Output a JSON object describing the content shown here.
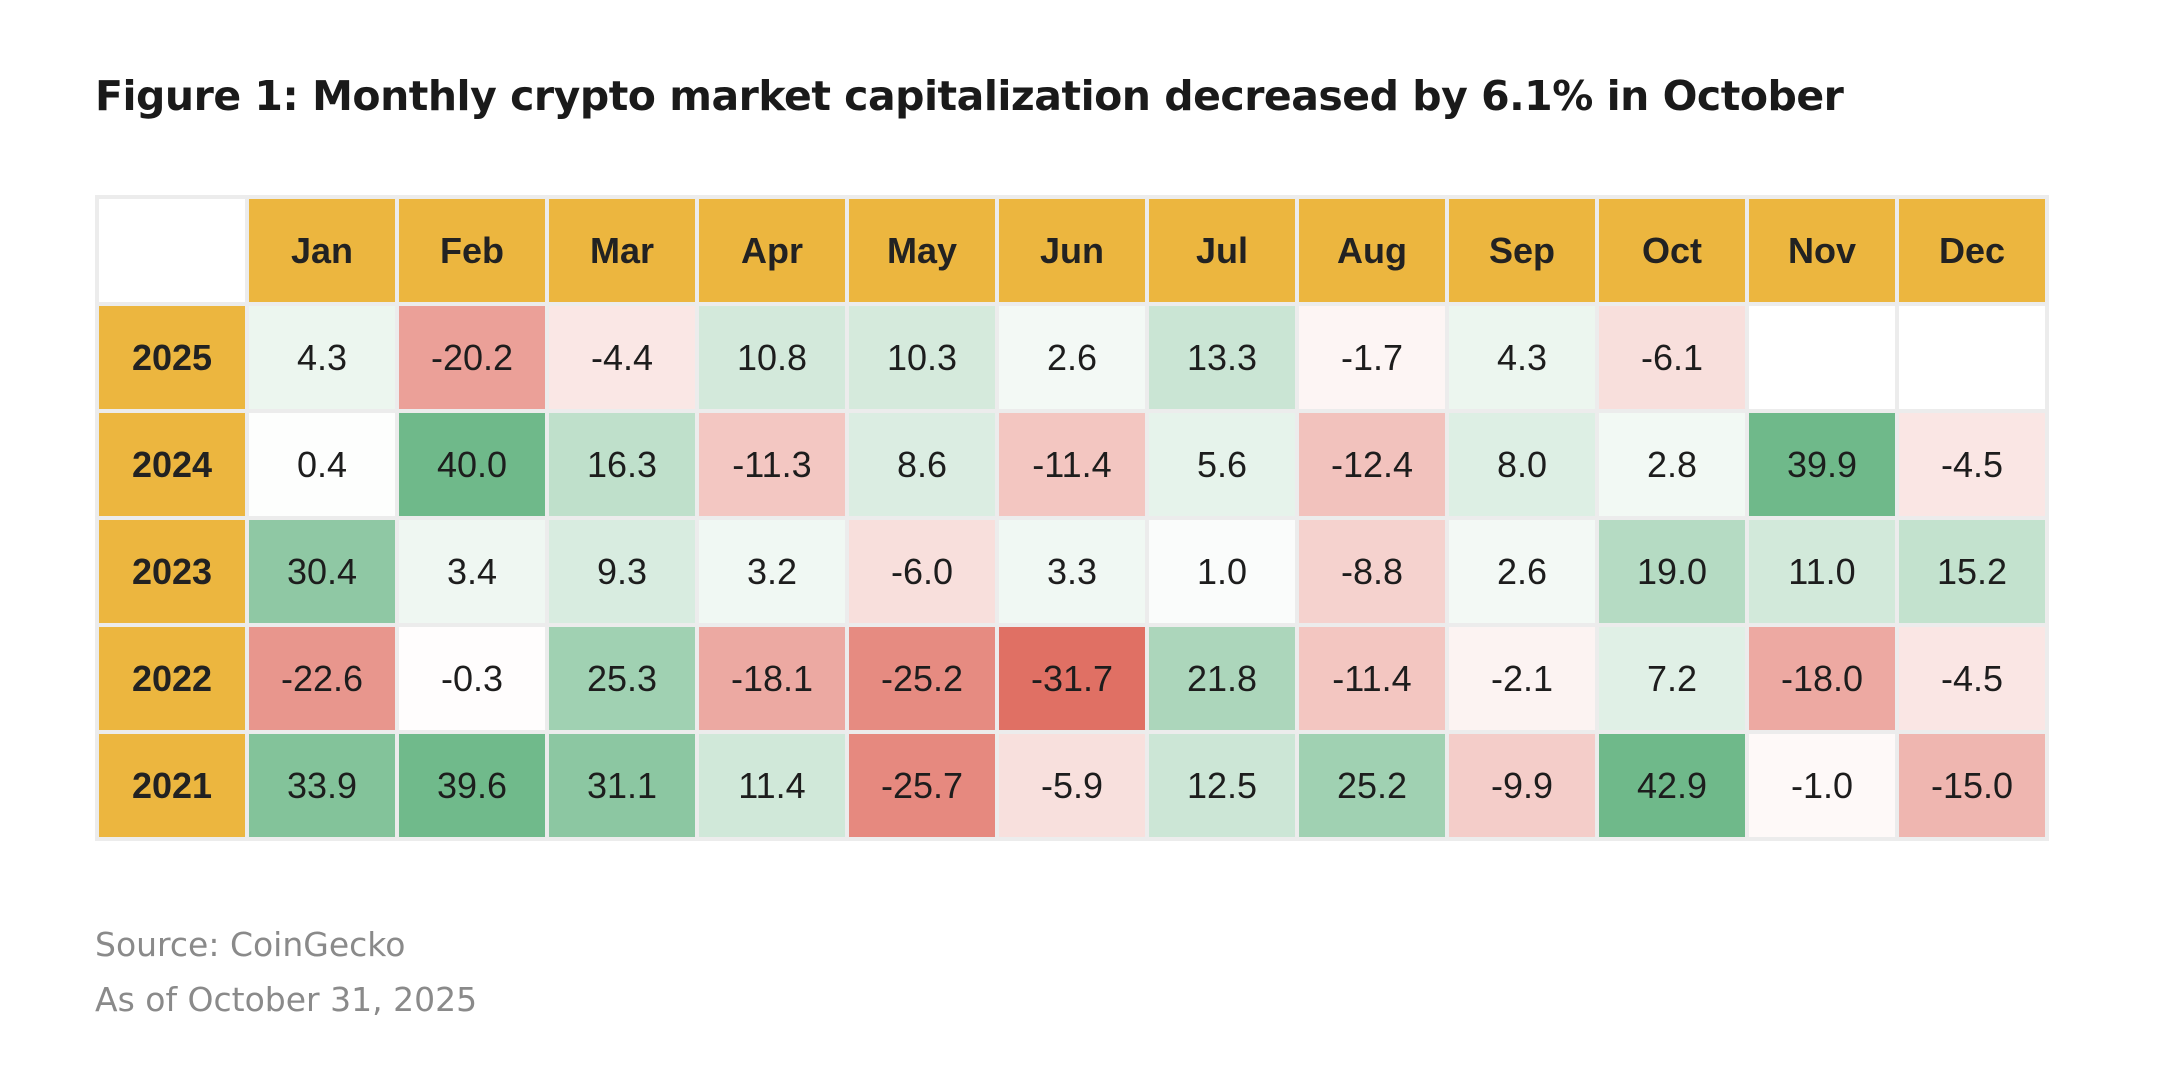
{
  "title": "Figure 1: Monthly crypto market capitalization decreased by 6.1% in October",
  "source": "Source: CoinGecko",
  "as_of": "As of October 31, 2025",
  "colors": {
    "header": "#ecb63f",
    "positive_max": "#6fb98a",
    "negative_max": "#e06f63",
    "neutral": "#ffffff"
  },
  "chart_data": {
    "type": "heatmap",
    "title": "Figure 1: Monthly crypto market capitalization decreased by 6.1% in October",
    "columns": [
      "Jan",
      "Feb",
      "Mar",
      "Apr",
      "May",
      "Jun",
      "Jul",
      "Aug",
      "Sep",
      "Oct",
      "Nov",
      "Dec"
    ],
    "rows": [
      {
        "year": "2025",
        "values": [
          "4.3",
          "-20.2",
          "-4.4",
          "10.8",
          "10.3",
          "2.6",
          "13.3",
          "-1.7",
          "4.3",
          "-6.1",
          "",
          ""
        ]
      },
      {
        "year": "2024",
        "values": [
          "0.4",
          "40.0",
          "16.3",
          "-11.3",
          "8.6",
          "-11.4",
          "5.6",
          "-12.4",
          "8.0",
          "2.8",
          "39.9",
          "-4.5"
        ]
      },
      {
        "year": "2023",
        "values": [
          "30.4",
          "3.4",
          "9.3",
          "3.2",
          "-6.0",
          "3.3",
          "1.0",
          "-8.8",
          "2.6",
          "19.0",
          "11.0",
          "15.2"
        ]
      },
      {
        "year": "2022",
        "values": [
          "-22.6",
          "-0.3",
          "25.3",
          "-18.1",
          "-25.2",
          "-31.7",
          "21.8",
          "-11.4",
          "-2.1",
          "7.2",
          "-18.0",
          "-4.5"
        ]
      },
      {
        "year": "2021",
        "values": [
          "33.9",
          "39.6",
          "31.1",
          "11.4",
          "-25.7",
          "-5.9",
          "12.5",
          "25.2",
          "-9.9",
          "42.9",
          "-1.0",
          "-15.0"
        ]
      }
    ],
    "color_scale": {
      "min": -31.7,
      "max": 42.9,
      "negative_color": "#e06f63",
      "positive_color": "#6fb98a"
    }
  }
}
